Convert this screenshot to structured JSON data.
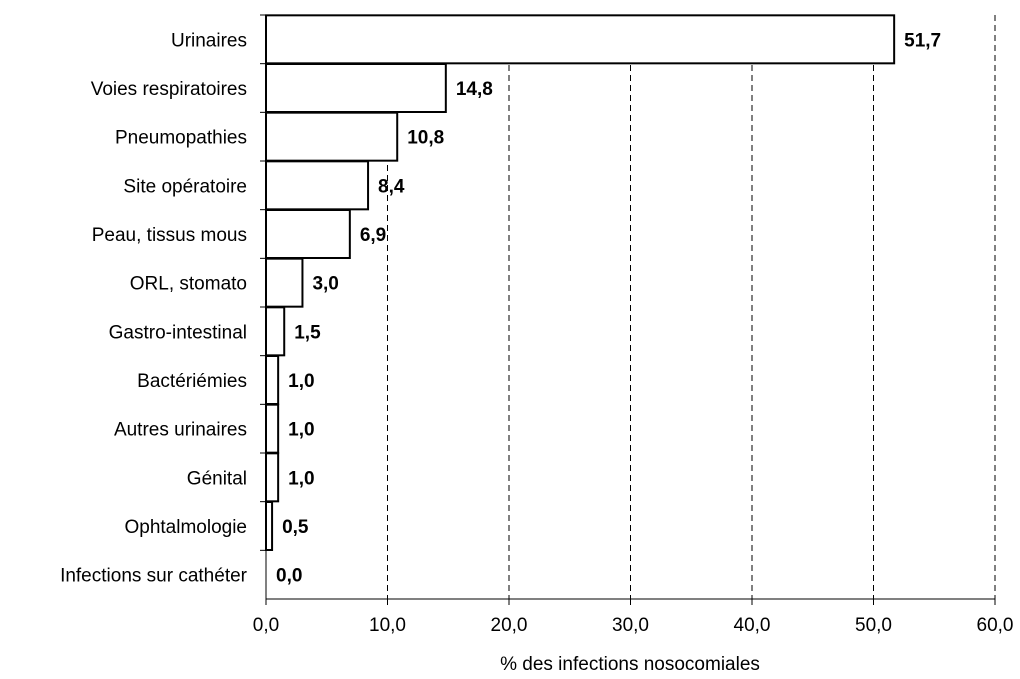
{
  "chart_data": {
    "type": "bar",
    "orientation": "horizontal",
    "title": "",
    "xlabel": "% des infections nosocomiales",
    "ylabel": "",
    "xlim": [
      0,
      60
    ],
    "xticks": [
      "0,0",
      "10,0",
      "20,0",
      "30,0",
      "40,0",
      "50,0",
      "60,0"
    ],
    "grid": "vertical dashed",
    "categories": [
      "Urinaires",
      "Voies respiratoires",
      "Pneumopathies",
      "Site opératoire",
      "Peau, tissus mous",
      "ORL, stomato",
      "Gastro-intestinal",
      "Bactériémies",
      "Autres urinaires",
      "Génital",
      "Ophtalmologie",
      "Infections sur cathéter"
    ],
    "values": [
      51.7,
      14.8,
      10.8,
      8.4,
      6.9,
      3.0,
      1.5,
      1.0,
      1.0,
      1.0,
      0.5,
      0.0
    ],
    "value_labels": [
      "51,7",
      "14,8",
      "10,8",
      "8,4",
      "6,9",
      "3,0",
      "1,5",
      "1,0",
      "1,0",
      "1,0",
      "0,5",
      "0,0"
    ],
    "colors": {
      "bar_fill": "#ffffff",
      "bar_stroke": "#000000"
    }
  }
}
